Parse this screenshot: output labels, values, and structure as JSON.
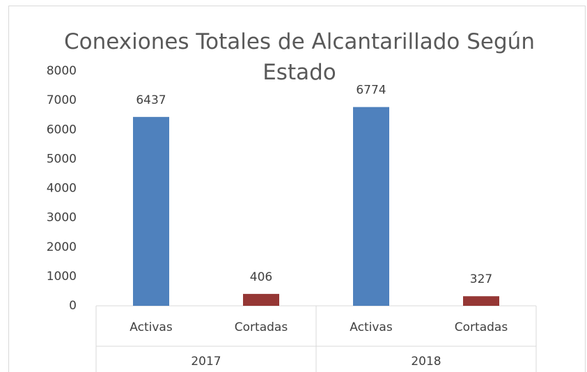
{
  "chart_data": {
    "type": "bar",
    "title": "Conexiones Totales de Alcantarillado Según Estado",
    "categories": [
      "Activas",
      "Cortadas",
      "Activas",
      "Cortadas"
    ],
    "groups": [
      "2017",
      "2018"
    ],
    "values": [
      6437,
      406,
      6774,
      327
    ],
    "colors": [
      "#4f81bd",
      "#953735",
      "#4f81bd",
      "#953735"
    ],
    "ylim": [
      0,
      8000
    ],
    "yticks": [
      0,
      1000,
      2000,
      3000,
      4000,
      5000,
      6000,
      7000,
      8000
    ],
    "grid": false
  }
}
